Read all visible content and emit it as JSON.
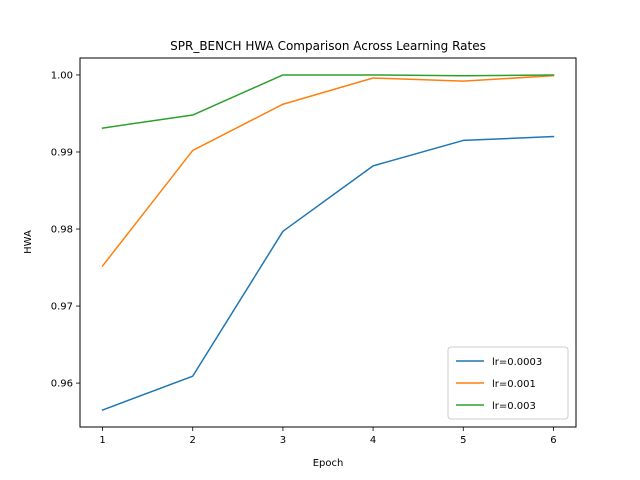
{
  "chart_data": {
    "type": "line",
    "title": "SPR_BENCH HWA Comparison Across Learning Rates",
    "xlabel": "Epoch",
    "ylabel": "HWA",
    "x": [
      1,
      2,
      3,
      4,
      5,
      6
    ],
    "xlim": [
      0.75,
      6.25
    ],
    "ylim": [
      0.9543,
      1.0022
    ],
    "xticks": [
      "1",
      "2",
      "3",
      "4",
      "5",
      "6"
    ],
    "yticks": [
      "0.96",
      "0.97",
      "0.98",
      "0.99",
      "1.00"
    ],
    "ytick_values": [
      0.96,
      0.97,
      0.98,
      0.99,
      1.0
    ],
    "grid": false,
    "legend_position": "lower-right",
    "series": [
      {
        "name": "lr=0.0003",
        "color": "#1f77b4",
        "values": [
          0.9565,
          0.9609,
          0.9797,
          0.9882,
          0.9915,
          0.992
        ]
      },
      {
        "name": "lr=0.001",
        "color": "#ff7f0e",
        "values": [
          0.9752,
          0.9902,
          0.9962,
          0.9996,
          0.9992,
          0.9999
        ]
      },
      {
        "name": "lr=0.003",
        "color": "#2ca02c",
        "values": [
          0.9931,
          0.9948,
          1.0,
          1.0,
          0.9999,
          1.0
        ]
      }
    ]
  }
}
